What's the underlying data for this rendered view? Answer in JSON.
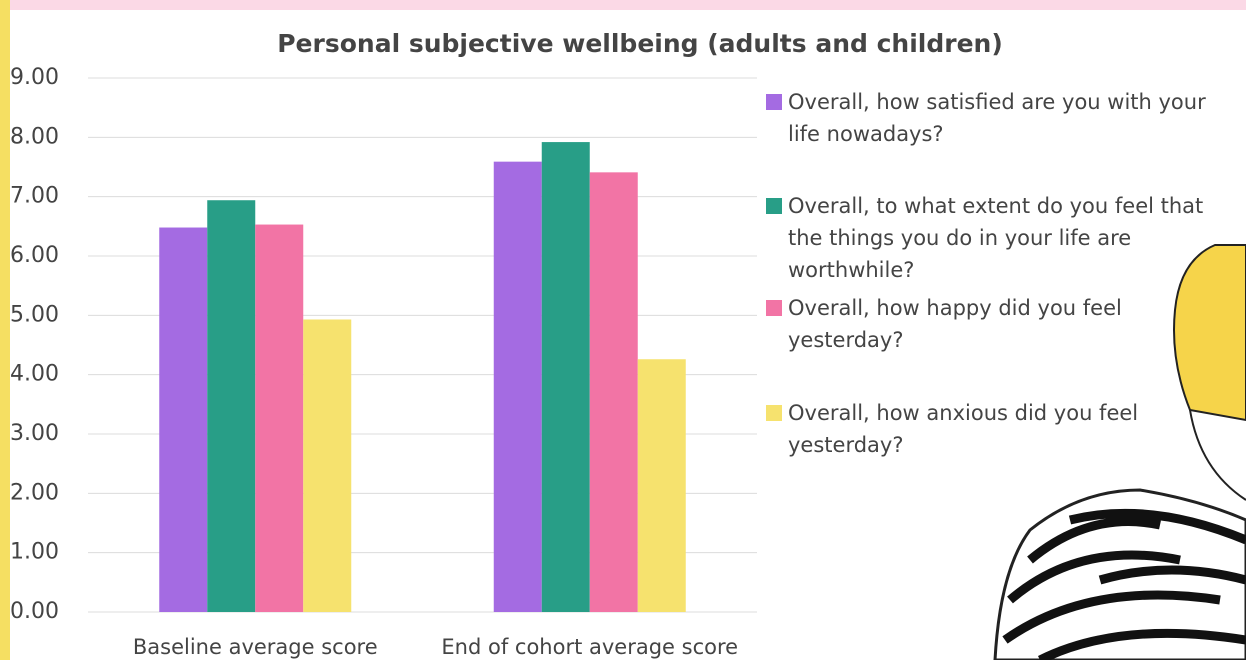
{
  "chart_data": {
    "type": "bar",
    "title": "Personal subjective wellbeing (adults and children)",
    "categories": [
      "Baseline average score",
      "End of cohort average score"
    ],
    "series": [
      {
        "name": "Overall, how satisfied are you with your life nowadays?",
        "color": "#a46be2",
        "values": [
          6.48,
          7.59
        ]
      },
      {
        "name": "Overall, to what extent do you feel that the things you do in your life are worthwhile?",
        "color": "#289e87",
        "values": [
          6.94,
          7.92
        ]
      },
      {
        "name": "Overall, how happy did you feel yesterday?",
        "color": "#f274a5",
        "values": [
          6.53,
          7.41
        ]
      },
      {
        "name": "Overall, how anxious did you feel yesterday?",
        "color": "#f6e26e",
        "values": [
          4.93,
          4.26
        ]
      }
    ],
    "ylim": [
      0,
      9
    ],
    "yticks": [
      {
        "value": 0,
        "label": "0.00"
      },
      {
        "value": 1,
        "label": "1.00"
      },
      {
        "value": 2,
        "label": "2.00"
      },
      {
        "value": 3,
        "label": "3.00"
      },
      {
        "value": 4,
        "label": "4.00"
      },
      {
        "value": 5,
        "label": "5.00"
      },
      {
        "value": 6,
        "label": "6.00"
      },
      {
        "value": 7,
        "label": "7.00"
      },
      {
        "value": 8,
        "label": "8.00"
      },
      {
        "value": 9,
        "label": "9.00"
      }
    ],
    "grid": true,
    "legend": "right"
  }
}
